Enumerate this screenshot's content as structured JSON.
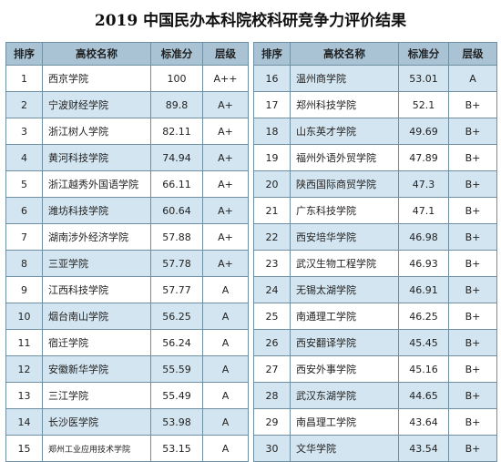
{
  "title": "2019 中国民办本科院校科研竞争力评价结果",
  "tables": [
    {
      "headers": [
        "排序",
        "高校名称",
        "标准分",
        "层级"
      ],
      "rows": [
        [
          "1",
          "西京学院",
          "100",
          "A++"
        ],
        [
          "2",
          "宁波财经学院",
          "89.8",
          "A+"
        ],
        [
          "3",
          "浙江树人学院",
          "82.11",
          "A+"
        ],
        [
          "4",
          "黄河科技学院",
          "74.94",
          "A+"
        ],
        [
          "5",
          "浙江越秀外国语学院",
          "66.11",
          "A+"
        ],
        [
          "6",
          "潍坊科技学院",
          "60.64",
          "A+"
        ],
        [
          "7",
          "湖南涉外经济学院",
          "57.88",
          "A+"
        ],
        [
          "8",
          "三亚学院",
          "57.78",
          "A+"
        ],
        [
          "9",
          "江西科技学院",
          "57.77",
          "A"
        ],
        [
          "10",
          "烟台南山学院",
          "56.25",
          "A"
        ],
        [
          "11",
          "宿迁学院",
          "56.24",
          "A"
        ],
        [
          "12",
          "安徽新华学院",
          "55.59",
          "A"
        ],
        [
          "13",
          "三江学院",
          "55.49",
          "A"
        ],
        [
          "14",
          "长沙医学院",
          "53.98",
          "A"
        ],
        [
          "15",
          "郑州工业应用技术学院",
          "53.15",
          "A"
        ]
      ]
    },
    {
      "headers": [
        "排序",
        "高校名称",
        "标准分",
        "层级"
      ],
      "rows": [
        [
          "16",
          "温州商学院",
          "53.01",
          "A"
        ],
        [
          "17",
          "郑州科技学院",
          "52.1",
          "B+"
        ],
        [
          "18",
          "山东英才学院",
          "49.69",
          "B+"
        ],
        [
          "19",
          "福州外语外贸学院",
          "47.89",
          "B+"
        ],
        [
          "20",
          "陕西国际商贸学院",
          "47.3",
          "B+"
        ],
        [
          "21",
          "广东科技学院",
          "47.1",
          "B+"
        ],
        [
          "22",
          "西安培华学院",
          "46.98",
          "B+"
        ],
        [
          "23",
          "武汉生物工程学院",
          "46.93",
          "B+"
        ],
        [
          "24",
          "无锡太湖学院",
          "46.91",
          "B+"
        ],
        [
          "25",
          "南通理工学院",
          "46.25",
          "B+"
        ],
        [
          "26",
          "西安翻译学院",
          "45.45",
          "B+"
        ],
        [
          "27",
          "西安外事学院",
          "45.16",
          "B+"
        ],
        [
          "28",
          "武汉东湖学院",
          "44.65",
          "B+"
        ],
        [
          "29",
          "南昌理工学院",
          "43.64",
          "B+"
        ],
        [
          "30",
          "文华学院",
          "43.54",
          "B+"
        ]
      ]
    }
  ]
}
